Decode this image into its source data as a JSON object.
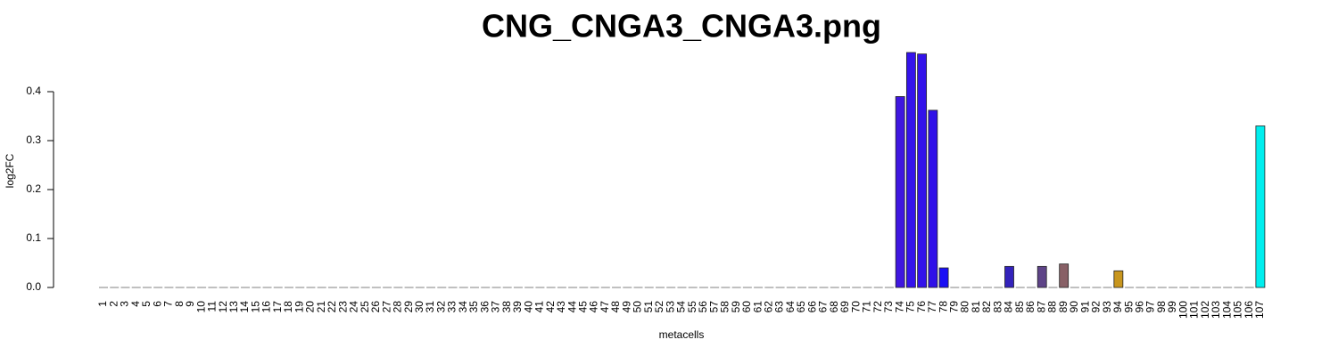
{
  "chart_data": {
    "type": "bar",
    "title": "CNG_CNGA3_CNGA3.png",
    "xlabel": "metacells",
    "ylabel": "log2FC",
    "categories": [
      "1",
      "2",
      "3",
      "4",
      "5",
      "6",
      "7",
      "8",
      "9",
      "10",
      "11",
      "12",
      "13",
      "14",
      "15",
      "16",
      "17",
      "18",
      "19",
      "20",
      "21",
      "22",
      "23",
      "24",
      "25",
      "26",
      "27",
      "28",
      "29",
      "30",
      "31",
      "32",
      "33",
      "34",
      "35",
      "36",
      "37",
      "38",
      "39",
      "40",
      "41",
      "42",
      "43",
      "44",
      "45",
      "46",
      "47",
      "48",
      "49",
      "50",
      "51",
      "52",
      "53",
      "54",
      "55",
      "56",
      "57",
      "58",
      "59",
      "60",
      "61",
      "62",
      "63",
      "64",
      "65",
      "66",
      "67",
      "68",
      "69",
      "70",
      "71",
      "72",
      "73",
      "74",
      "75",
      "76",
      "77",
      "78",
      "79",
      "80",
      "81",
      "82",
      "83",
      "84",
      "85",
      "86",
      "87",
      "88",
      "89",
      "90",
      "91",
      "92",
      "93",
      "94",
      "95",
      "96",
      "97",
      "98",
      "99",
      "100",
      "101",
      "102",
      "103",
      "104",
      "105",
      "106",
      "107"
    ],
    "values": [
      0,
      0,
      0,
      0,
      0,
      0,
      0,
      0,
      0,
      0,
      0,
      0,
      0,
      0,
      0,
      0,
      0,
      0,
      0,
      0,
      0,
      0,
      0,
      0,
      0,
      0,
      0,
      0,
      0,
      0,
      0,
      0,
      0,
      0,
      0,
      0,
      0,
      0,
      0,
      0,
      0,
      0,
      0,
      0,
      0,
      0,
      0,
      0,
      0,
      0,
      0,
      0,
      0,
      0,
      0,
      0,
      0,
      0,
      0,
      0,
      0,
      0,
      0,
      0,
      0,
      0,
      0,
      0,
      0,
      0,
      0,
      0,
      0,
      0.39,
      0.48,
      0.477,
      0.362,
      0.04,
      0,
      0,
      0,
      0,
      0,
      0.043,
      0,
      0,
      0.043,
      0,
      0.048,
      0,
      0,
      0,
      0,
      0.034,
      0,
      0,
      0,
      0,
      0,
      0,
      0,
      0,
      0,
      0,
      0,
      0,
      0.33
    ],
    "colors": [
      "#808080",
      "#808080",
      "#808080",
      "#808080",
      "#808080",
      "#808080",
      "#808080",
      "#808080",
      "#808080",
      "#808080",
      "#808080",
      "#808080",
      "#808080",
      "#808080",
      "#808080",
      "#808080",
      "#808080",
      "#808080",
      "#808080",
      "#808080",
      "#808080",
      "#808080",
      "#808080",
      "#808080",
      "#808080",
      "#808080",
      "#808080",
      "#808080",
      "#808080",
      "#808080",
      "#808080",
      "#808080",
      "#808080",
      "#808080",
      "#808080",
      "#808080",
      "#808080",
      "#808080",
      "#808080",
      "#808080",
      "#808080",
      "#808080",
      "#808080",
      "#808080",
      "#808080",
      "#808080",
      "#808080",
      "#808080",
      "#808080",
      "#808080",
      "#808080",
      "#808080",
      "#808080",
      "#808080",
      "#808080",
      "#808080",
      "#808080",
      "#808080",
      "#808080",
      "#808080",
      "#808080",
      "#808080",
      "#808080",
      "#808080",
      "#808080",
      "#808080",
      "#808080",
      "#808080",
      "#808080",
      "#808080",
      "#808080",
      "#808080",
      "#808080",
      "#3f16e0",
      "#3413ec",
      "#3312ea",
      "#2f10e8",
      "#1a0ff5",
      "#808080",
      "#808080",
      "#808080",
      "#808080",
      "#808080",
      "#3322bb",
      "#808080",
      "#808080",
      "#5e4488",
      "#808080",
      "#886066",
      "#808080",
      "#808080",
      "#808080",
      "#808080",
      "#c8961e",
      "#808080",
      "#808080",
      "#808080",
      "#808080",
      "#808080",
      "#808080",
      "#808080",
      "#808080",
      "#808080",
      "#808080",
      "#808080",
      "#808080",
      "#00eeee"
    ],
    "ylim": [
      0,
      0.5
    ],
    "yticks": [
      {
        "value": 0,
        "label": "0.0"
      },
      0.1,
      0.2,
      0.3,
      0.4
    ]
  }
}
